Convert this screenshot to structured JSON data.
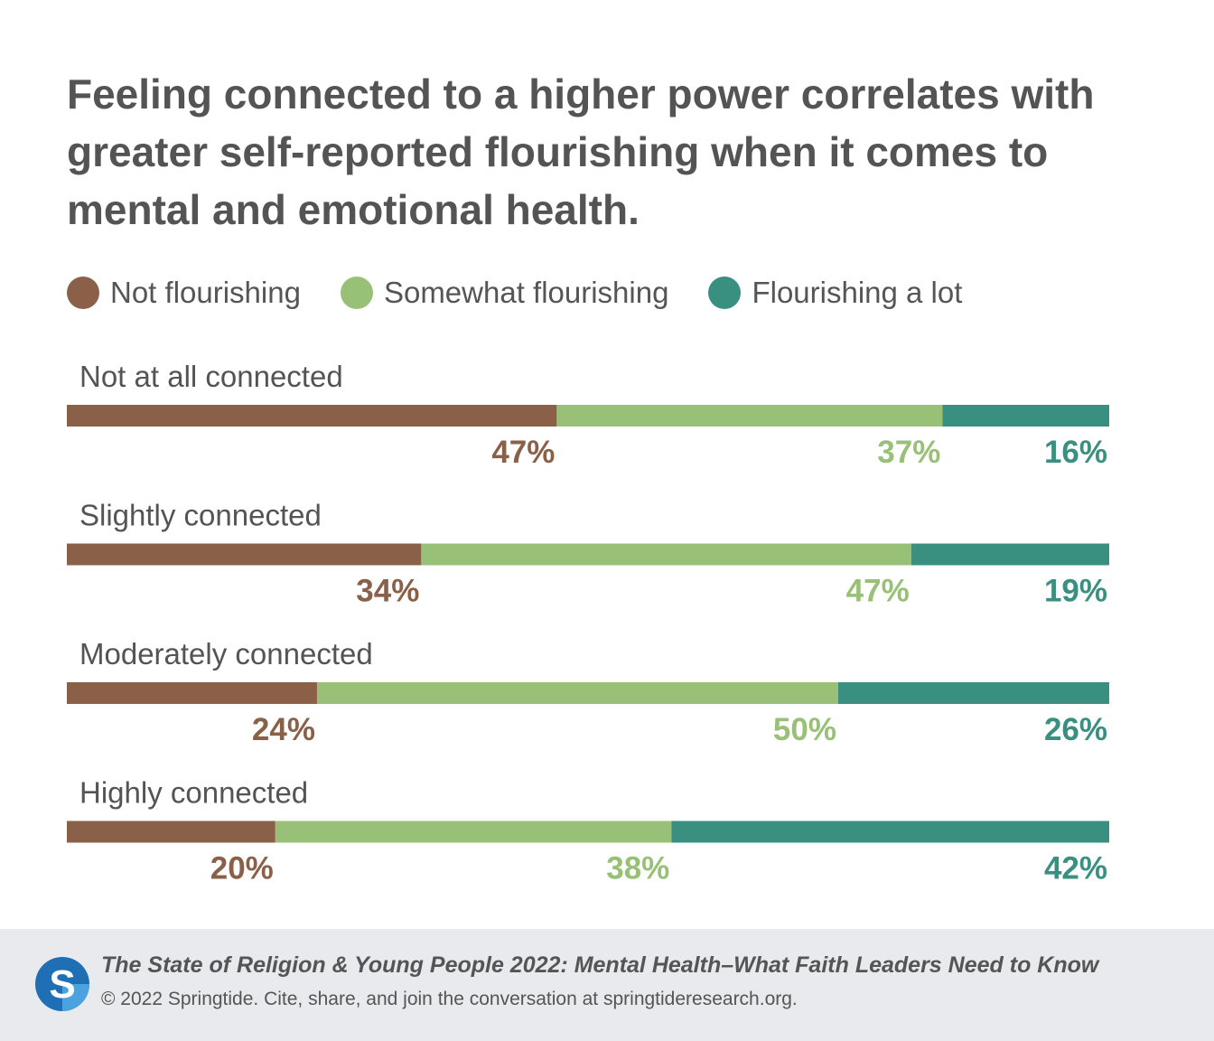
{
  "title": "Feeling connected to a higher power correlates with greater self-reported flourishing when it comes to mental and emotional health.",
  "colors": {
    "not_flourishing": "#8b6048",
    "somewhat_flourishing": "#98c076",
    "flourishing_a_lot": "#3a9080",
    "text": "#545454",
    "footer_bg": "#e8eaee",
    "logo_blue": "#1f6fb4"
  },
  "chart_data": {
    "type": "bar",
    "orientation": "horizontal",
    "stacked": true,
    "unit": "%",
    "categories": [
      "Not at all connected",
      "Slightly connected",
      "Moderately connected",
      "Highly connected"
    ],
    "series": [
      {
        "name": "Not flourishing",
        "color": "#8b6048",
        "values": [
          47,
          34,
          24,
          20
        ]
      },
      {
        "name": "Somewhat flourishing",
        "color": "#98c076",
        "values": [
          37,
          47,
          50,
          38
        ]
      },
      {
        "name": "Flourishing a lot",
        "color": "#3a9080",
        "values": [
          16,
          19,
          26,
          42
        ]
      }
    ],
    "legend_position": "top-left",
    "grid": false
  },
  "footer": {
    "title": "The State of Religion & Young People 2022: Mental Health–What Faith Leaders Need to Know",
    "copyright": "© 2022 Springtide. Cite, share, and join the conversation at springtideresearch.org.",
    "logo_letter": "S",
    "logo_icon": "springtide-logo-icon"
  }
}
